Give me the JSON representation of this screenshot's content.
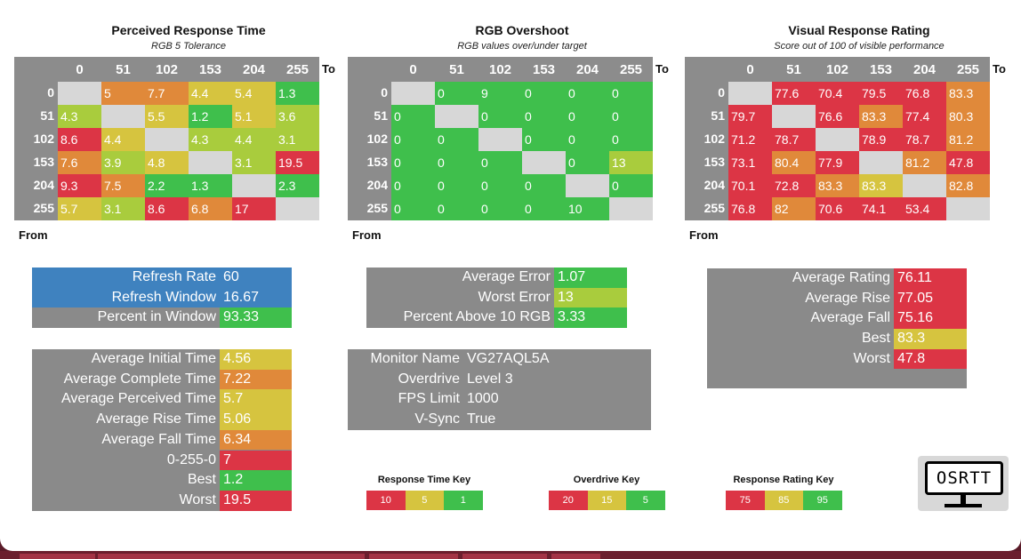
{
  "colors": {
    "red": "#dc3545",
    "orange": "#e0893a",
    "yellow": "#d6c43f",
    "lime": "#a9cc3d",
    "green": "#3fbf4c",
    "blank": "#d7d7d7",
    "blue": "#3f82bf",
    "panel": "#8a8a8a",
    "grid_header": "#8c8c8c"
  },
  "axis": {
    "to": "To",
    "from": "From",
    "levels": [
      "0",
      "51",
      "102",
      "153",
      "204",
      "255"
    ]
  },
  "matrices": [
    {
      "title": "Perceived Response Time",
      "subtitle": "RGB 5 Tolerance",
      "rows": [
        [
          "",
          "5",
          "7.7",
          "4.4",
          "5.4",
          "1.3"
        ],
        [
          "4.3",
          "",
          "5.5",
          "1.2",
          "5.1",
          "3.6"
        ],
        [
          "8.6",
          "4.4",
          "",
          "4.3",
          "4.4",
          "3.1"
        ],
        [
          "7.6",
          "3.9",
          "4.8",
          "",
          "3.1",
          "19.5"
        ],
        [
          "9.3",
          "7.5",
          "2.2",
          "1.3",
          "",
          "2.3"
        ],
        [
          "5.7",
          "3.1",
          "8.6",
          "6.8",
          "17",
          ""
        ]
      ],
      "colors": [
        [
          "blank",
          "orange",
          "orange",
          "yellow",
          "yellow",
          "green"
        ],
        [
          "lime",
          "blank",
          "yellow",
          "green",
          "yellow",
          "lime"
        ],
        [
          "red",
          "yellow",
          "blank",
          "lime",
          "lime",
          "lime"
        ],
        [
          "orange",
          "lime",
          "yellow",
          "blank",
          "lime",
          "red"
        ],
        [
          "red",
          "orange",
          "green",
          "green",
          "blank",
          "green"
        ],
        [
          "yellow",
          "lime",
          "red",
          "orange",
          "red",
          "blank"
        ]
      ]
    },
    {
      "title": "RGB Overshoot",
      "subtitle": "RGB values over/under target",
      "rows": [
        [
          "",
          "0",
          "9",
          "0",
          "0",
          "0"
        ],
        [
          "0",
          "",
          "0",
          "0",
          "0",
          "0"
        ],
        [
          "0",
          "0",
          "",
          "0",
          "0",
          "0"
        ],
        [
          "0",
          "0",
          "0",
          "",
          "0",
          "13"
        ],
        [
          "0",
          "0",
          "0",
          "0",
          "",
          "0"
        ],
        [
          "0",
          "0",
          "0",
          "0",
          "10",
          ""
        ]
      ],
      "colors": [
        [
          "blank",
          "green",
          "green",
          "green",
          "green",
          "green"
        ],
        [
          "green",
          "blank",
          "green",
          "green",
          "green",
          "green"
        ],
        [
          "green",
          "green",
          "blank",
          "green",
          "green",
          "green"
        ],
        [
          "green",
          "green",
          "green",
          "blank",
          "green",
          "lime"
        ],
        [
          "green",
          "green",
          "green",
          "green",
          "blank",
          "green"
        ],
        [
          "green",
          "green",
          "green",
          "green",
          "green",
          "blank"
        ]
      ]
    },
    {
      "title": "Visual Response Rating",
      "subtitle": "Score out of 100 of visible performance",
      "rows": [
        [
          "",
          "77.6",
          "70.4",
          "79.5",
          "76.8",
          "83.3"
        ],
        [
          "79.7",
          "",
          "76.6",
          "83.3",
          "77.4",
          "80.3"
        ],
        [
          "71.2",
          "78.7",
          "",
          "78.9",
          "78.7",
          "81.2"
        ],
        [
          "73.1",
          "80.4",
          "77.9",
          "",
          "81.2",
          "47.8"
        ],
        [
          "70.1",
          "72.8",
          "83.3",
          "83.3",
          "",
          "82.8"
        ],
        [
          "76.8",
          "82",
          "70.6",
          "74.1",
          "53.4",
          ""
        ]
      ],
      "colors": [
        [
          "blank",
          "red",
          "red",
          "red",
          "red",
          "orange"
        ],
        [
          "red",
          "blank",
          "red",
          "orange",
          "red",
          "orange"
        ],
        [
          "red",
          "red",
          "blank",
          "red",
          "red",
          "orange"
        ],
        [
          "red",
          "orange",
          "red",
          "blank",
          "orange",
          "red"
        ],
        [
          "red",
          "red",
          "orange",
          "yellow",
          "blank",
          "orange"
        ],
        [
          "red",
          "orange",
          "red",
          "red",
          "red",
          "blank"
        ]
      ]
    }
  ],
  "refresh_panel": [
    {
      "label": "Refresh Rate",
      "value": "60",
      "label_bg": "blue",
      "value_bg": "blue"
    },
    {
      "label": "Refresh Window",
      "value": "16.67",
      "label_bg": "blue",
      "value_bg": "blue"
    },
    {
      "label": "Percent in Window",
      "value": "93.33",
      "label_bg": "panel",
      "value_bg": "green"
    }
  ],
  "time_panel": [
    {
      "label": "Average Initial Time",
      "value": "4.56",
      "value_bg": "yellow"
    },
    {
      "label": "Average Complete Time",
      "value": "7.22",
      "value_bg": "orange"
    },
    {
      "label": "Average Perceived Time",
      "value": "5.7",
      "value_bg": "yellow"
    },
    {
      "label": "Average Rise Time",
      "value": "5.06",
      "value_bg": "yellow"
    },
    {
      "label": "Average Fall Time",
      "value": "6.34",
      "value_bg": "orange"
    },
    {
      "label": "0-255-0",
      "value": "7",
      "value_bg": "red"
    },
    {
      "label": "Best",
      "value": "1.2",
      "value_bg": "green"
    },
    {
      "label": "Worst",
      "value": "19.5",
      "value_bg": "red"
    }
  ],
  "error_panel": [
    {
      "label": "Average Error",
      "value": "1.07",
      "value_bg": "green"
    },
    {
      "label": "Worst Error",
      "value": "13",
      "value_bg": "lime"
    },
    {
      "label": "Percent Above 10 RGB",
      "value": "3.33",
      "value_bg": "green"
    }
  ],
  "monitor_panel": [
    {
      "label": "Monitor Name",
      "value": "VG27AQL5A"
    },
    {
      "label": "Overdrive",
      "value": "Level 3"
    },
    {
      "label": "FPS Limit",
      "value": "1000"
    },
    {
      "label": "V-Sync",
      "value": "True"
    }
  ],
  "rating_panel": [
    {
      "label": "Average Rating",
      "value": "76.11",
      "value_bg": "red"
    },
    {
      "label": "Average Rise",
      "value": "77.05",
      "value_bg": "red"
    },
    {
      "label": "Average Fall",
      "value": "75.16",
      "value_bg": "red"
    },
    {
      "label": "Best",
      "value": "83.3",
      "value_bg": "yellow"
    },
    {
      "label": "Worst",
      "value": "47.8",
      "value_bg": "red"
    }
  ],
  "keys": [
    {
      "title": "Response Time Key",
      "cells": [
        {
          "text": "10",
          "color": "red"
        },
        {
          "text": "5",
          "color": "yellow"
        },
        {
          "text": "1",
          "color": "green"
        }
      ]
    },
    {
      "title": "Overdrive Key",
      "cells": [
        {
          "text": "20",
          "color": "red"
        },
        {
          "text": "15",
          "color": "yellow"
        },
        {
          "text": "5",
          "color": "green"
        }
      ]
    },
    {
      "title": "Response Rating Key",
      "cells": [
        {
          "text": "75",
          "color": "red"
        },
        {
          "text": "85",
          "color": "yellow"
        },
        {
          "text": "95",
          "color": "green"
        }
      ]
    }
  ],
  "logo_text": "OSRTT"
}
